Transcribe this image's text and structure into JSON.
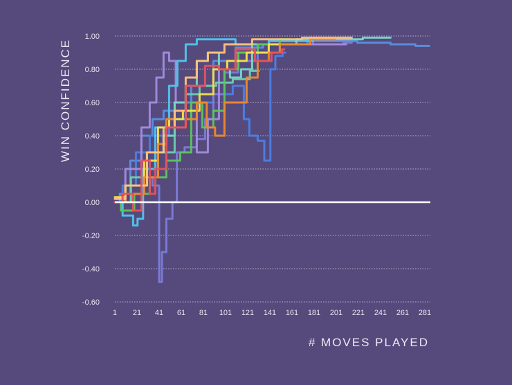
{
  "chart_data": {
    "type": "line",
    "title": "",
    "xlabel": "# MOVES PLAYED",
    "ylabel": "WIN CONFIDENCE",
    "xlim": [
      1,
      286
    ],
    "ylim": [
      -0.6,
      1.0
    ],
    "x_ticks": [
      "1",
      "21",
      "41",
      "61",
      "81",
      "101",
      "121",
      "141",
      "161",
      "181",
      "201",
      "221",
      "241",
      "261",
      "281"
    ],
    "y_ticks": [
      "1.00",
      "0.80",
      "0.60",
      "0.40",
      "0.20",
      "0.00",
      "-0.20",
      "-0.40",
      "-0.60"
    ],
    "grid": "horizontal dotted",
    "zero_line": true,
    "background": "#554a7b",
    "series": [
      {
        "color": "#5b8fe0",
        "points": [
          [
            1,
            0
          ],
          [
            10,
            0.05
          ],
          [
            20,
            0.25
          ],
          [
            30,
            0.4
          ],
          [
            40,
            0.5
          ],
          [
            50,
            0.55
          ],
          [
            60,
            0.6
          ],
          [
            80,
            0.7
          ],
          [
            100,
            0.85
          ],
          [
            120,
            0.93
          ],
          [
            150,
            0.95
          ],
          [
            200,
            0.97
          ],
          [
            240,
            0.96
          ],
          [
            260,
            0.95
          ],
          [
            285,
            0.94
          ]
        ]
      },
      {
        "color": "#4a7fe8",
        "points": [
          [
            1,
            0
          ],
          [
            15,
            0.1
          ],
          [
            25,
            0.3
          ],
          [
            40,
            0.4
          ],
          [
            60,
            0.5
          ],
          [
            80,
            0.6
          ],
          [
            100,
            0.65
          ],
          [
            115,
            0.7
          ],
          [
            120,
            0.5
          ],
          [
            125,
            0.4
          ],
          [
            135,
            0.37
          ],
          [
            137,
            0.25
          ],
          [
            141,
            0.25
          ],
          [
            142,
            0.8
          ],
          [
            150,
            0.88
          ],
          [
            155,
            0.9
          ]
        ]
      },
      {
        "color": "#7b7bdc",
        "points": [
          [
            1,
            0
          ],
          [
            30,
            0.15
          ],
          [
            40,
            0.1
          ],
          [
            42,
            -0.48
          ],
          [
            45,
            -0.3
          ],
          [
            50,
            -0.1
          ],
          [
            56,
            0
          ],
          [
            58,
            0.3
          ],
          [
            70,
            0.33
          ],
          [
            80,
            0.38
          ],
          [
            85,
            0.5
          ],
          [
            95,
            0.65
          ],
          [
            105,
            0.78
          ],
          [
            120,
            0.85
          ],
          [
            140,
            0.9
          ],
          [
            160,
            0.95
          ],
          [
            200,
            0.97
          ],
          [
            215,
            0.96
          ]
        ]
      },
      {
        "color": "#a58be0",
        "points": [
          [
            1,
            0
          ],
          [
            20,
            0.2
          ],
          [
            30,
            0.45
          ],
          [
            35,
            0.6
          ],
          [
            42,
            0.75
          ],
          [
            48,
            0.9
          ],
          [
            52,
            0.85
          ],
          [
            60,
            0.6
          ],
          [
            70,
            0.55
          ],
          [
            80,
            0.3
          ],
          [
            90,
            0.5
          ],
          [
            100,
            0.8
          ],
          [
            120,
            0.9
          ],
          [
            160,
            0.95
          ],
          [
            210,
            0.95
          ]
        ]
      },
      {
        "color": "#4fc6ef",
        "points": [
          [
            1,
            0
          ],
          [
            15,
            -0.08
          ],
          [
            20,
            -0.14
          ],
          [
            23,
            -0.1
          ],
          [
            30,
            0.2
          ],
          [
            45,
            0.45
          ],
          [
            55,
            0.7
          ],
          [
            60,
            0.85
          ],
          [
            70,
            0.95
          ],
          [
            80,
            0.98
          ],
          [
            100,
            0.98
          ],
          [
            120,
            0.95
          ],
          [
            160,
            0.97
          ],
          [
            200,
            0.98
          ]
        ]
      },
      {
        "color": "#78d8c8",
        "points": [
          [
            1,
            0
          ],
          [
            20,
            0.1
          ],
          [
            40,
            0.3
          ],
          [
            50,
            0.4
          ],
          [
            60,
            0.6
          ],
          [
            70,
            0.7
          ],
          [
            80,
            0.85
          ],
          [
            90,
            0.9
          ],
          [
            100,
            0.8
          ],
          [
            110,
            0.75
          ],
          [
            120,
            0.8
          ],
          [
            130,
            0.95
          ],
          [
            200,
            0.98
          ],
          [
            250,
            0.99
          ]
        ]
      },
      {
        "color": "#6ad0b0",
        "points": [
          [
            1,
            0
          ],
          [
            30,
            0.15
          ],
          [
            50,
            0.3
          ],
          [
            60,
            0.5
          ],
          [
            70,
            0.65
          ],
          [
            85,
            0.7
          ],
          [
            100,
            0.72
          ],
          [
            115,
            0.74
          ],
          [
            131,
            0.79
          ]
        ]
      },
      {
        "color": "#5cc65a",
        "points": [
          [
            1,
            0
          ],
          [
            12,
            -0.05
          ],
          [
            25,
            0.05
          ],
          [
            40,
            0.15
          ],
          [
            55,
            0.25
          ],
          [
            65,
            0.3
          ],
          [
            75,
            0.6
          ],
          [
            85,
            0.45
          ],
          [
            95,
            0.55
          ],
          [
            105,
            0.8
          ],
          [
            120,
            0.9
          ],
          [
            140,
            0.95
          ],
          [
            160,
            0.98
          ]
        ]
      },
      {
        "color": "#f4e24c",
        "points": [
          [
            1,
            0.03
          ],
          [
            20,
            0.1
          ],
          [
            35,
            0.25
          ],
          [
            45,
            0.45
          ],
          [
            55,
            0.5
          ],
          [
            70,
            0.55
          ],
          [
            85,
            0.65
          ],
          [
            95,
            0.8
          ],
          [
            110,
            0.85
          ],
          [
            130,
            0.9
          ],
          [
            150,
            0.95
          ]
        ]
      },
      {
        "color": "#f0882e",
        "points": [
          [
            1,
            0
          ],
          [
            20,
            0.05
          ],
          [
            35,
            0.15
          ],
          [
            45,
            0.35
          ],
          [
            50,
            0.5
          ],
          [
            60,
            0.45
          ],
          [
            70,
            0.5
          ],
          [
            80,
            0.6
          ],
          [
            88,
            0.45
          ],
          [
            95,
            0.4
          ],
          [
            105,
            0.6
          ],
          [
            115,
            0.6
          ],
          [
            125,
            0.75
          ],
          [
            135,
            0.85
          ],
          [
            145,
            0.9
          ],
          [
            155,
            0.95
          ],
          [
            200,
            0.98
          ]
        ]
      },
      {
        "color": "#ffc27e",
        "points": [
          [
            1,
            0.02
          ],
          [
            20,
            0.1
          ],
          [
            40,
            0.3
          ],
          [
            50,
            0.45
          ],
          [
            60,
            0.55
          ],
          [
            70,
            0.75
          ],
          [
            80,
            0.85
          ],
          [
            90,
            0.9
          ],
          [
            110,
            0.95
          ],
          [
            140,
            0.98
          ],
          [
            200,
            0.99
          ],
          [
            215,
            0.99
          ]
        ]
      },
      {
        "color": "#e8505e",
        "points": [
          [
            1,
            0
          ],
          [
            15,
            0.05
          ],
          [
            20,
            -0.05
          ],
          [
            30,
            0.25
          ],
          [
            35,
            0.05
          ],
          [
            40,
            0.2
          ],
          [
            55,
            0.45
          ],
          [
            75,
            0.7
          ],
          [
            90,
            0.82
          ],
          [
            100,
            0.8
          ],
          [
            120,
            0.92
          ],
          [
            135,
            0.85
          ],
          [
            150,
            0.9
          ],
          [
            154,
            0.92
          ]
        ]
      }
    ]
  }
}
